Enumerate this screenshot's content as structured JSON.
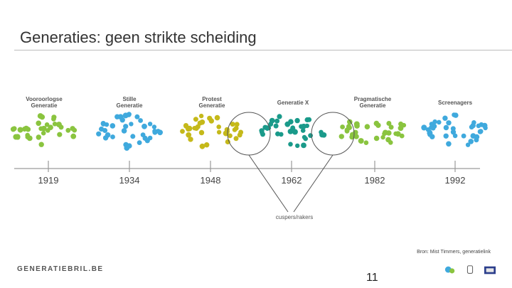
{
  "slide": {
    "title": "Generaties: geen strikte scheiding",
    "page_number": "11",
    "source": "Bron: Mist Timmers, generatielink",
    "footer_brand": "GENERATIEBRIL.BE"
  },
  "diagram": {
    "generations": [
      {
        "line1": "Vooroorlogse",
        "line2": "Generatie",
        "color": "#8ac43f",
        "dots": 34
      },
      {
        "line1": "Stille",
        "line2": "Generatie",
        "color": "#3fa9dd",
        "dots": 38
      },
      {
        "line1": "Protest",
        "line2": "Generatie",
        "color": "#c5b91a",
        "dots": 34
      },
      {
        "line1": "Generatie X",
        "line2": "",
        "color": "#1a9a8a",
        "dots": 36
      },
      {
        "line1": "Pragmatische",
        "line2": "Generatie",
        "color": "#8ac43f",
        "dots": 34
      },
      {
        "line1": "Screenagers",
        "line2": "",
        "color": "#3fa9dd",
        "dots": 38
      }
    ],
    "years": [
      "1919",
      "1934",
      "1948",
      "1962",
      "1982",
      "1992"
    ],
    "cusp_label": "cuspers/rakers",
    "colors": {
      "axis": "#9a9a9a",
      "circle": "#555555"
    }
  }
}
